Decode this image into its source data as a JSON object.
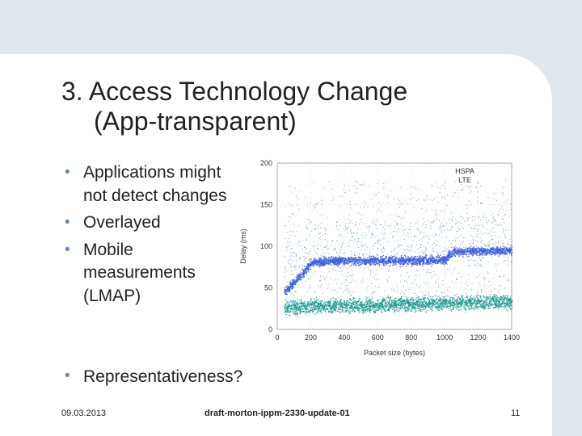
{
  "slide": {
    "title_line1": "3. Access Technology Change",
    "title_line2": "(App-transparent)",
    "bullets": [
      "Applications might not detect changes",
      "Overlayed",
      "Mobile measurements (LMAP)"
    ],
    "bullet_bottom": "Representativeness?",
    "footer_date": "09.03.2013",
    "footer_draft": "draft-morton-ippm-2330-update-01",
    "footer_page": "11"
  },
  "colors": {
    "hspa": "#3d5fd6",
    "lte": "#1f9a90"
  },
  "chart_data": {
    "type": "scatter",
    "xlabel": "Packet size (bytes)",
    "ylabel": "Delay (ms)",
    "xlim": [
      0,
      1400
    ],
    "ylim": [
      0,
      200
    ],
    "xticks": [
      0,
      200,
      400,
      600,
      800,
      1000,
      1200,
      1400
    ],
    "yticks": [
      0,
      50,
      100,
      150,
      200
    ],
    "legend_position": "top-right",
    "series": [
      {
        "name": "HSPA",
        "description_points": [
          [
            50,
            46
          ],
          [
            100,
            58
          ],
          [
            150,
            68
          ],
          [
            200,
            80
          ],
          [
            300,
            83
          ],
          [
            600,
            83
          ],
          [
            1000,
            84
          ],
          [
            1050,
            94
          ],
          [
            1200,
            95
          ],
          [
            1400,
            95
          ]
        ]
      },
      {
        "name": "LTE",
        "description_points": [
          [
            50,
            26
          ],
          [
            200,
            28
          ],
          [
            600,
            30
          ],
          [
            1000,
            32
          ],
          [
            1400,
            34
          ]
        ]
      }
    ]
  }
}
